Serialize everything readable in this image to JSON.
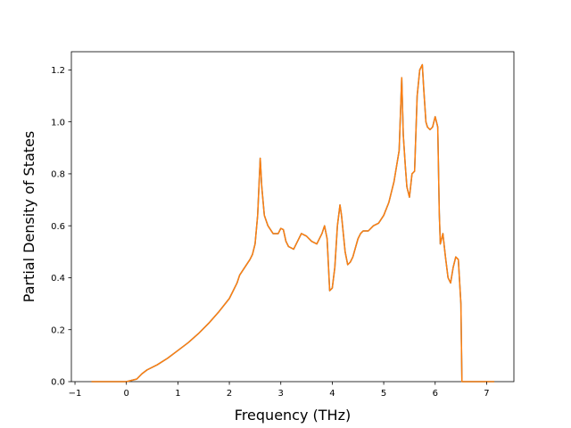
{
  "chart_data": {
    "type": "line",
    "title": "",
    "xlabel": "Frequency (THz)",
    "ylabel": "Partial Density of States",
    "xlim": [
      -1.07,
      7.53
    ],
    "ylim": [
      0.0,
      1.27
    ],
    "xticks": [
      -1,
      0,
      1,
      2,
      3,
      4,
      5,
      6,
      7
    ],
    "yticks": [
      0.0,
      0.2,
      0.4,
      0.6,
      0.8,
      1.0,
      1.2
    ],
    "xtick_labels": [
      "−1",
      "0",
      "1",
      "2",
      "3",
      "4",
      "5",
      "6",
      "7"
    ],
    "ytick_labels": [
      "0.0",
      "0.2",
      "0.4",
      "0.6",
      "0.8",
      "1.0",
      "1.2"
    ],
    "grid": false,
    "legend": "none",
    "series": [
      {
        "color": "#1f77b4",
        "x": [
          -0.68,
          0.0,
          0.2,
          0.3,
          0.4,
          0.6,
          0.8,
          1.0,
          1.2,
          1.4,
          1.6,
          1.8,
          2.0,
          2.1,
          2.15,
          2.2,
          2.3,
          2.4,
          2.45,
          2.5,
          2.55,
          2.6,
          2.63,
          2.68,
          2.75,
          2.85,
          2.95,
          3.0,
          3.05,
          3.1,
          3.15,
          3.25,
          3.3,
          3.4,
          3.5,
          3.6,
          3.7,
          3.8,
          3.85,
          3.9,
          3.95,
          4.0,
          4.05,
          4.1,
          4.15,
          4.18,
          4.2,
          4.25,
          4.3,
          4.35,
          4.4,
          4.5,
          4.55,
          4.6,
          4.7,
          4.8,
          4.9,
          5.0,
          5.1,
          5.2,
          5.3,
          5.35,
          5.38,
          5.42,
          5.45,
          5.5,
          5.55,
          5.6,
          5.65,
          5.7,
          5.75,
          5.78,
          5.82,
          5.85,
          5.9,
          5.95,
          6.0,
          6.05,
          6.08,
          6.1,
          6.15,
          6.2,
          6.25,
          6.3,
          6.35,
          6.4,
          6.45,
          6.5,
          6.52,
          7.15
        ],
        "y": [
          0.0,
          0.0,
          0.01,
          0.03,
          0.045,
          0.065,
          0.09,
          0.12,
          0.15,
          0.185,
          0.225,
          0.27,
          0.32,
          0.36,
          0.38,
          0.41,
          0.44,
          0.47,
          0.49,
          0.53,
          0.64,
          0.86,
          0.75,
          0.64,
          0.6,
          0.57,
          0.57,
          0.59,
          0.585,
          0.54,
          0.52,
          0.51,
          0.53,
          0.57,
          0.56,
          0.54,
          0.53,
          0.57,
          0.6,
          0.55,
          0.35,
          0.36,
          0.44,
          0.6,
          0.68,
          0.64,
          0.6,
          0.5,
          0.45,
          0.46,
          0.48,
          0.55,
          0.57,
          0.58,
          0.58,
          0.6,
          0.61,
          0.64,
          0.69,
          0.77,
          0.89,
          1.17,
          0.95,
          0.83,
          0.75,
          0.71,
          0.8,
          0.81,
          1.1,
          1.2,
          1.22,
          1.12,
          1.0,
          0.98,
          0.97,
          0.98,
          1.02,
          0.98,
          0.65,
          0.53,
          0.57,
          0.48,
          0.4,
          0.38,
          0.44,
          0.48,
          0.47,
          0.3,
          0.0,
          0.0
        ]
      },
      {
        "color": "#ff7f0e",
        "x": [
          -0.68,
          0.0,
          0.2,
          0.3,
          0.4,
          0.6,
          0.8,
          1.0,
          1.2,
          1.4,
          1.6,
          1.8,
          2.0,
          2.1,
          2.15,
          2.2,
          2.3,
          2.4,
          2.45,
          2.5,
          2.55,
          2.6,
          2.63,
          2.68,
          2.75,
          2.85,
          2.95,
          3.0,
          3.05,
          3.1,
          3.15,
          3.25,
          3.3,
          3.4,
          3.5,
          3.6,
          3.7,
          3.8,
          3.85,
          3.9,
          3.95,
          4.0,
          4.05,
          4.1,
          4.15,
          4.18,
          4.2,
          4.25,
          4.3,
          4.35,
          4.4,
          4.5,
          4.55,
          4.6,
          4.7,
          4.8,
          4.9,
          5.0,
          5.1,
          5.2,
          5.3,
          5.35,
          5.38,
          5.42,
          5.45,
          5.5,
          5.55,
          5.6,
          5.65,
          5.7,
          5.75,
          5.78,
          5.82,
          5.85,
          5.9,
          5.95,
          6.0,
          6.05,
          6.08,
          6.1,
          6.15,
          6.2,
          6.25,
          6.3,
          6.35,
          6.4,
          6.45,
          6.5,
          6.52,
          7.15
        ],
        "y": [
          0.0,
          0.0,
          0.01,
          0.03,
          0.045,
          0.065,
          0.09,
          0.12,
          0.15,
          0.185,
          0.225,
          0.27,
          0.32,
          0.36,
          0.38,
          0.41,
          0.44,
          0.47,
          0.49,
          0.53,
          0.64,
          0.86,
          0.75,
          0.64,
          0.6,
          0.57,
          0.57,
          0.59,
          0.585,
          0.54,
          0.52,
          0.51,
          0.53,
          0.57,
          0.56,
          0.54,
          0.53,
          0.57,
          0.6,
          0.55,
          0.35,
          0.36,
          0.44,
          0.6,
          0.68,
          0.64,
          0.6,
          0.5,
          0.45,
          0.46,
          0.48,
          0.55,
          0.57,
          0.58,
          0.58,
          0.6,
          0.61,
          0.64,
          0.69,
          0.77,
          0.89,
          1.17,
          0.95,
          0.83,
          0.75,
          0.71,
          0.8,
          0.81,
          1.1,
          1.2,
          1.22,
          1.12,
          1.0,
          0.98,
          0.97,
          0.98,
          1.02,
          0.98,
          0.65,
          0.53,
          0.57,
          0.48,
          0.4,
          0.38,
          0.44,
          0.48,
          0.47,
          0.3,
          0.0,
          0.0
        ]
      }
    ]
  }
}
